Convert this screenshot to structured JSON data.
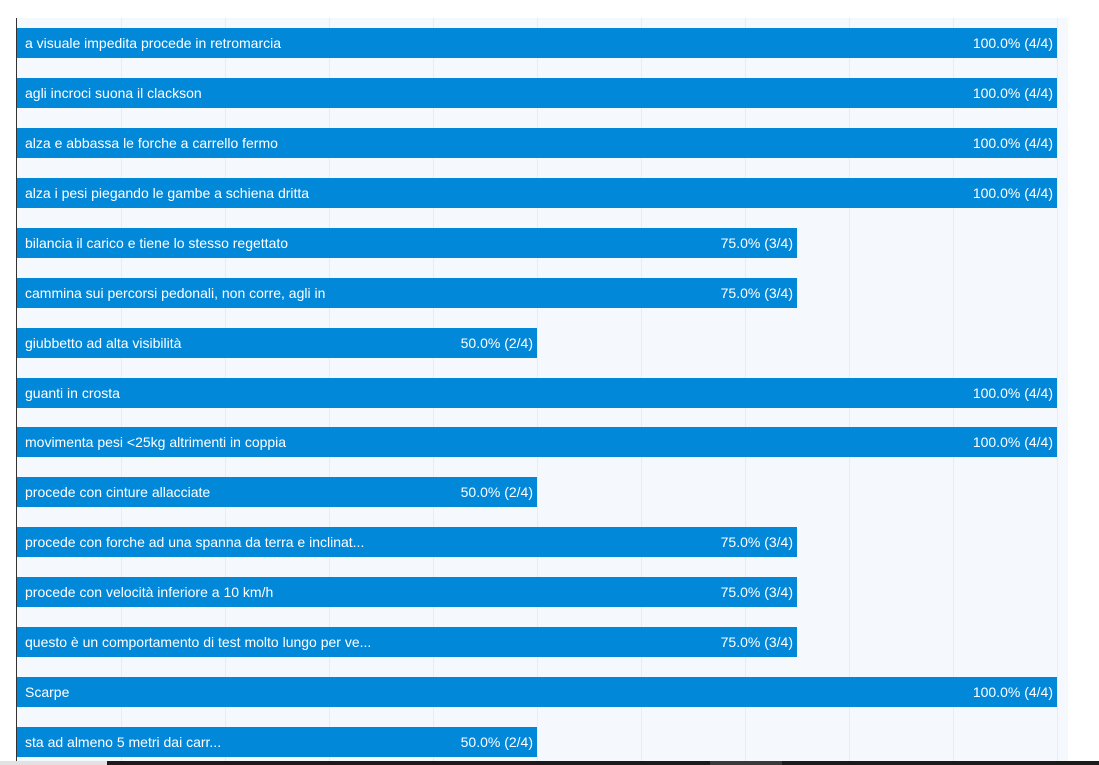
{
  "chart_data": {
    "type": "bar",
    "orientation": "horizontal",
    "grid": true,
    "xlim": [
      0,
      100
    ],
    "colors": {
      "bar": "#0288d9",
      "background": "#f5f9fd",
      "grid": "#e6edf5"
    },
    "categories": [
      "a visuale impedita procede in retromarcia",
      "agli incroci suona il clackson",
      "alza e abbassa le forche a carrello fermo",
      "alza i pesi piegando le gambe a schiena dritta",
      "bilancia il carico e tiene lo stesso regettato",
      "cammina sui percorsi pedonali, non corre, agli in",
      "giubbetto ad alta visibilità",
      "guanti in crosta",
      "movimenta pesi <25kg altrimenti in coppia",
      "procede con cinture allacciate",
      "procede con forche ad una spanna da terra e inclinat...",
      "procede con velocità inferiore a 10 km/h",
      "questo è un comportamento di test molto lungo per ve...",
      "Scarpe",
      "sta ad almeno 5 metri dai carr..."
    ],
    "values": [
      100,
      100,
      100,
      100,
      75,
      75,
      50,
      100,
      100,
      50,
      75,
      75,
      75,
      100,
      50
    ],
    "value_labels": [
      "100.0% (4/4)",
      "100.0% (4/4)",
      "100.0% (4/4)",
      "100.0% (4/4)",
      "75.0% (3/4)",
      "75.0% (3/4)",
      "50.0% (2/4)",
      "100.0% (4/4)",
      "100.0% (4/4)",
      "50.0% (2/4)",
      "75.0% (3/4)",
      "75.0% (3/4)",
      "75.0% (3/4)",
      "100.0% (4/4)",
      "50.0% (2/4)"
    ]
  }
}
